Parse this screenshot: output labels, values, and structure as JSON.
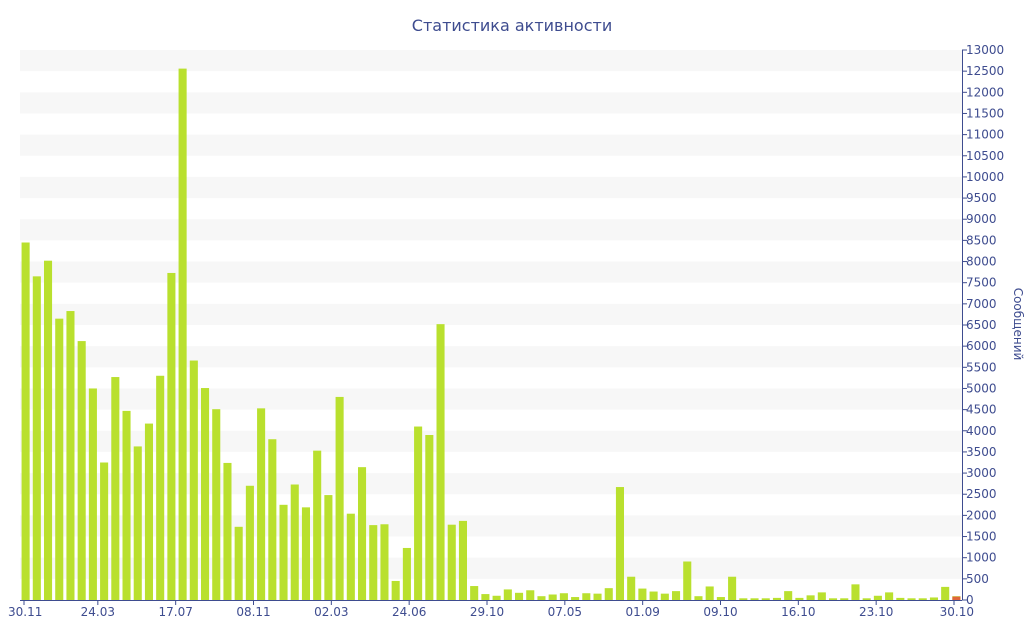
{
  "chart_data": {
    "type": "bar",
    "title": "Статистика активности",
    "xlabel": "",
    "ylabel": "Сообщений",
    "ylim": [
      0,
      13000
    ],
    "y_ticks": [
      0,
      500,
      1000,
      1500,
      2000,
      2500,
      3000,
      3500,
      4000,
      4500,
      5000,
      5500,
      6000,
      6500,
      7000,
      7500,
      8000,
      8500,
      9000,
      9500,
      10000,
      10500,
      11000,
      11500,
      12000,
      12500,
      13000
    ],
    "y_axis_position": "right",
    "grid": "horizontal-bands",
    "x_tick_labels": [
      "30.11",
      "24.03",
      "17.07",
      "08.11",
      "02.03",
      "24.06",
      "29.10",
      "07.05",
      "01.09",
      "09.10",
      "16.10",
      "23.10",
      "30.10"
    ],
    "series": [
      {
        "color": "#b9e02e",
        "values": [
          8450,
          7650,
          8020,
          6650,
          6830,
          6120,
          5000,
          3250,
          5270,
          4470,
          3630,
          4170,
          5300,
          7730,
          12560,
          5660,
          5010,
          4510,
          3240,
          1730,
          2700,
          4530,
          3800,
          2250,
          2730,
          2190,
          3530,
          2480,
          4800,
          2040,
          3140,
          1770,
          1790,
          450,
          1230,
          4100,
          3900,
          6520,
          1780,
          1870,
          330,
          140,
          100,
          250,
          170,
          230,
          90,
          130,
          160,
          70,
          160,
          150,
          280,
          2670,
          550,
          270,
          200,
          150,
          210,
          910,
          90,
          320,
          70,
          550,
          40,
          40,
          40,
          50,
          210,
          50,
          110,
          180,
          40,
          40,
          370,
          40,
          100,
          180,
          50,
          40,
          40,
          60,
          310,
          90
        ]
      },
      {
        "color": "#e0663a",
        "values": [
          0,
          0,
          0,
          0,
          0,
          0,
          0,
          0,
          0,
          0,
          0,
          0,
          0,
          0,
          0,
          0,
          0,
          0,
          0,
          0,
          0,
          0,
          0,
          0,
          0,
          0,
          0,
          0,
          0,
          0,
          0,
          0,
          0,
          0,
          0,
          0,
          0,
          0,
          0,
          0,
          0,
          0,
          0,
          0,
          0,
          0,
          0,
          0,
          0,
          0,
          0,
          0,
          0,
          0,
          0,
          0,
          0,
          0,
          0,
          0,
          0,
          0,
          0,
          0,
          0,
          0,
          0,
          0,
          0,
          0,
          0,
          0,
          0,
          0,
          0,
          0,
          0,
          0,
          0,
          0,
          0,
          0,
          0,
          80
        ]
      }
    ],
    "colors": {
      "band": "#f7f7f7",
      "axis": "#3e4c8f",
      "bar": "#b9e02e",
      "bar_alt": "#e0663a"
    }
  }
}
